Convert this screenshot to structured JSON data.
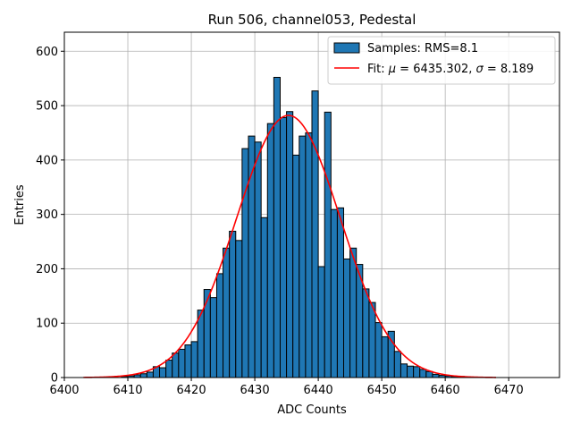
{
  "chart_data": {
    "type": "bar",
    "title": "Run 506, channel053, Pedestal",
    "xlabel": "ADC Counts",
    "ylabel": "Entries",
    "xlim": [
      6400,
      6478
    ],
    "ylim": [
      0,
      635
    ],
    "xticks": [
      6400,
      6410,
      6420,
      6430,
      6440,
      6450,
      6460,
      6470
    ],
    "yticks": [
      0,
      100,
      200,
      300,
      400,
      500,
      600
    ],
    "grid": true,
    "legend_position": "top-right",
    "bin_width": 1,
    "bins": [
      [
        6409,
        2
      ],
      [
        6410,
        3
      ],
      [
        6411,
        5
      ],
      [
        6412,
        7
      ],
      [
        6413,
        10
      ],
      [
        6414,
        20
      ],
      [
        6415,
        18
      ],
      [
        6416,
        32
      ],
      [
        6417,
        45
      ],
      [
        6418,
        52
      ],
      [
        6419,
        60
      ],
      [
        6420,
        66
      ],
      [
        6421,
        124
      ],
      [
        6422,
        162
      ],
      [
        6423,
        147
      ],
      [
        6424,
        191
      ],
      [
        6425,
        238
      ],
      [
        6426,
        269
      ],
      [
        6427,
        252
      ],
      [
        6428,
        421
      ],
      [
        6429,
        444
      ],
      [
        6430,
        433
      ],
      [
        6431,
        294
      ],
      [
        6432,
        467
      ],
      [
        6433,
        552
      ],
      [
        6434,
        478
      ],
      [
        6435,
        489
      ],
      [
        6436,
        409
      ],
      [
        6437,
        444
      ],
      [
        6438,
        450
      ],
      [
        6439,
        527
      ],
      [
        6440,
        204
      ],
      [
        6441,
        488
      ],
      [
        6442,
        309
      ],
      [
        6443,
        312
      ],
      [
        6444,
        218
      ],
      [
        6445,
        238
      ],
      [
        6446,
        208
      ],
      [
        6447,
        163
      ],
      [
        6448,
        138
      ],
      [
        6449,
        101
      ],
      [
        6450,
        75
      ],
      [
        6451,
        85
      ],
      [
        6452,
        48
      ],
      [
        6453,
        25
      ],
      [
        6454,
        21
      ],
      [
        6455,
        20
      ],
      [
        6456,
        15
      ],
      [
        6457,
        11
      ],
      [
        6458,
        6
      ],
      [
        6459,
        4
      ],
      [
        6460,
        3
      ],
      [
        6461,
        2
      ],
      [
        6462,
        2
      ]
    ],
    "series": [
      {
        "name": "Samples: RMS=8.1",
        "kind": "histogram",
        "color": "#1f77b4"
      },
      {
        "name": "Fit: μ = 6435.302, σ = 8.189",
        "kind": "gaussian",
        "color": "#ff0000",
        "mu": 6435.302,
        "sigma": 8.189,
        "amplitude": 482,
        "x_range": [
          6403,
          6468
        ]
      }
    ]
  },
  "legend": {
    "samples_label": "Samples: RMS=8.1",
    "fit_prefix": "Fit: ",
    "fit_mu_symbol": "μ",
    "fit_mu_text": " = 6435.302, ",
    "fit_sigma_symbol": "σ",
    "fit_sigma_text": " = 8.189"
  }
}
